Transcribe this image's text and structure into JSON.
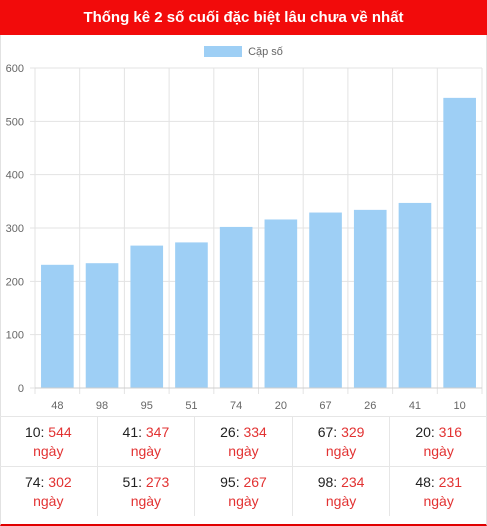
{
  "header": {
    "title": "Thống kê 2 số cuối đặc biệt lâu chưa về nhất"
  },
  "colors": {
    "bar": "#9ecff5",
    "accent": "#f20b0b",
    "value": "#e23232"
  },
  "chart_data": {
    "type": "bar",
    "title": "",
    "xlabel": "",
    "ylabel": "",
    "ylim": [
      0,
      600
    ],
    "yticks": [
      0,
      100,
      200,
      300,
      400,
      500,
      600
    ],
    "categories": [
      "48",
      "98",
      "95",
      "51",
      "74",
      "20",
      "67",
      "26",
      "41",
      "10"
    ],
    "series": [
      {
        "name": "Cặp số",
        "values": [
          231,
          234,
          267,
          273,
          302,
          316,
          329,
          334,
          347,
          544
        ]
      }
    ],
    "grid": true,
    "legend": "top-center"
  },
  "stats": {
    "unit": "ngày",
    "rows": [
      [
        {
          "pair": "10",
          "days": "544"
        },
        {
          "pair": "41",
          "days": "347"
        },
        {
          "pair": "26",
          "days": "334"
        },
        {
          "pair": "67",
          "days": "329"
        },
        {
          "pair": "20",
          "days": "316"
        }
      ],
      [
        {
          "pair": "74",
          "days": "302"
        },
        {
          "pair": "51",
          "days": "273"
        },
        {
          "pair": "95",
          "days": "267"
        },
        {
          "pair": "98",
          "days": "234"
        },
        {
          "pair": "48",
          "days": "231"
        }
      ]
    ]
  }
}
